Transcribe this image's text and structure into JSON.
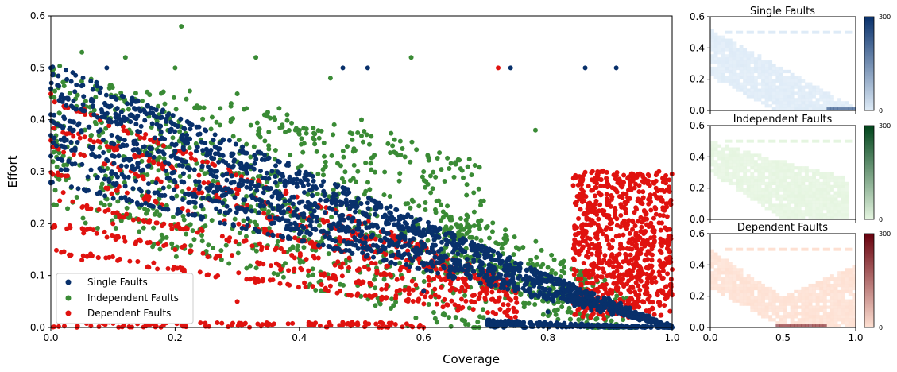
{
  "chart_data": [
    {
      "type": "scatter",
      "xlabel": "Coverage",
      "ylabel": "Effort",
      "xlim": [
        0,
        1
      ],
      "ylim": [
        0,
        0.6
      ],
      "xticks": [
        "0.0",
        "0.2",
        "0.4",
        "0.6",
        "0.8",
        "1.0"
      ],
      "yticks": [
        "0.0",
        "0.1",
        "0.2",
        "0.3",
        "0.4",
        "0.5",
        "0.6"
      ],
      "legend_position": "lower-left",
      "grid": false,
      "series": [
        {
          "name": "Single Faults",
          "color": "#08306b",
          "pattern": "dense points along straight bands from coverage 0 to 1, falling from effort 0.28-0.52 to ~0",
          "points": [
            [
              0.0,
              0.5
            ],
            [
              0.0,
              0.46
            ],
            [
              0.0,
              0.41
            ],
            [
              0.0,
              0.37
            ],
            [
              0.0,
              0.33
            ],
            [
              0.0,
              0.28
            ],
            [
              0.2,
              0.39
            ],
            [
              0.2,
              0.34
            ],
            [
              0.2,
              0.28
            ],
            [
              0.4,
              0.3
            ],
            [
              0.4,
              0.24
            ],
            [
              0.4,
              0.18
            ],
            [
              0.6,
              0.18
            ],
            [
              0.6,
              0.12
            ],
            [
              0.6,
              0.07
            ],
            [
              0.8,
              0.06
            ],
            [
              0.8,
              0.03
            ],
            [
              1.0,
              0.0
            ],
            [
              0.09,
              0.5
            ],
            [
              0.47,
              0.5
            ],
            [
              0.51,
              0.5
            ],
            [
              0.74,
              0.5
            ],
            [
              0.86,
              0.5
            ],
            [
              0.91,
              0.5
            ]
          ]
        },
        {
          "name": "Independent Faults",
          "color": "#3a8b35",
          "pattern": "scattered points above the single-fault bands, effort up to ~0.58, coverage 0 to 0.95",
          "points": [
            [
              0.05,
              0.53
            ],
            [
              0.12,
              0.52
            ],
            [
              0.21,
              0.58
            ],
            [
              0.2,
              0.5
            ],
            [
              0.33,
              0.52
            ],
            [
              0.45,
              0.48
            ],
            [
              0.58,
              0.52
            ],
            [
              0.3,
              0.45
            ],
            [
              0.5,
              0.4
            ],
            [
              0.55,
              0.35
            ],
            [
              0.6,
              0.3
            ],
            [
              0.4,
              0.38
            ],
            [
              0.7,
              0.15
            ],
            [
              0.78,
              0.38
            ],
            [
              0.85,
              0.1
            ],
            [
              0.7,
              0.05
            ]
          ]
        },
        {
          "name": "Dependent Faults",
          "color": "#e0120f",
          "pattern": "points along lower bands plus a dense cluster at coverage 0.85-1.0, effort 0.0-0.3",
          "points": [
            [
              0.0,
              0.45
            ],
            [
              0.0,
              0.36
            ],
            [
              0.02,
              0.26
            ],
            [
              0.05,
              0.13
            ],
            [
              0.1,
              0.2
            ],
            [
              0.2,
              0.15
            ],
            [
              0.3,
              0.05
            ],
            [
              0.45,
              0.08
            ],
            [
              0.6,
              0.0
            ],
            [
              0.72,
              0.5
            ],
            [
              0.88,
              0.3
            ],
            [
              0.9,
              0.2
            ],
            [
              0.92,
              0.25
            ],
            [
              0.95,
              0.15
            ],
            [
              0.97,
              0.28
            ],
            [
              0.98,
              0.1
            ],
            [
              0.86,
              0.18
            ],
            [
              0.93,
              0.05
            ]
          ]
        }
      ]
    },
    {
      "type": "heatmap",
      "title": "Single Faults",
      "colormap": [
        "#deebf7",
        "#08306b"
      ],
      "xlim": [
        0,
        1
      ],
      "ylim": [
        0,
        0.6
      ],
      "xticks": [
        "0.0",
        "0.5",
        "1.0"
      ],
      "yticks": [
        "0.0",
        "0.2",
        "0.4",
        "0.6"
      ],
      "colorbar_ticks": [
        "0",
        "300"
      ]
    },
    {
      "type": "heatmap",
      "title": "Independent Faults",
      "colormap": [
        "#e5f5e0",
        "#00441b"
      ],
      "xlim": [
        0,
        1
      ],
      "ylim": [
        0,
        0.6
      ],
      "xticks": [
        "0.0",
        "0.5",
        "1.0"
      ],
      "yticks": [
        "0.0",
        "0.2",
        "0.4",
        "0.6"
      ],
      "colorbar_ticks": [
        "0",
        "300"
      ]
    },
    {
      "type": "heatmap",
      "title": "Dependent Faults",
      "colormap": [
        "#fee0d2",
        "#67000d"
      ],
      "xlim": [
        0,
        1
      ],
      "ylim": [
        0,
        0.6
      ],
      "xticks": [
        "0.0",
        "0.5",
        "1.0"
      ],
      "yticks": [
        "0.0",
        "0.2",
        "0.4",
        "0.6"
      ],
      "colorbar_ticks": [
        "0",
        "300"
      ]
    }
  ]
}
